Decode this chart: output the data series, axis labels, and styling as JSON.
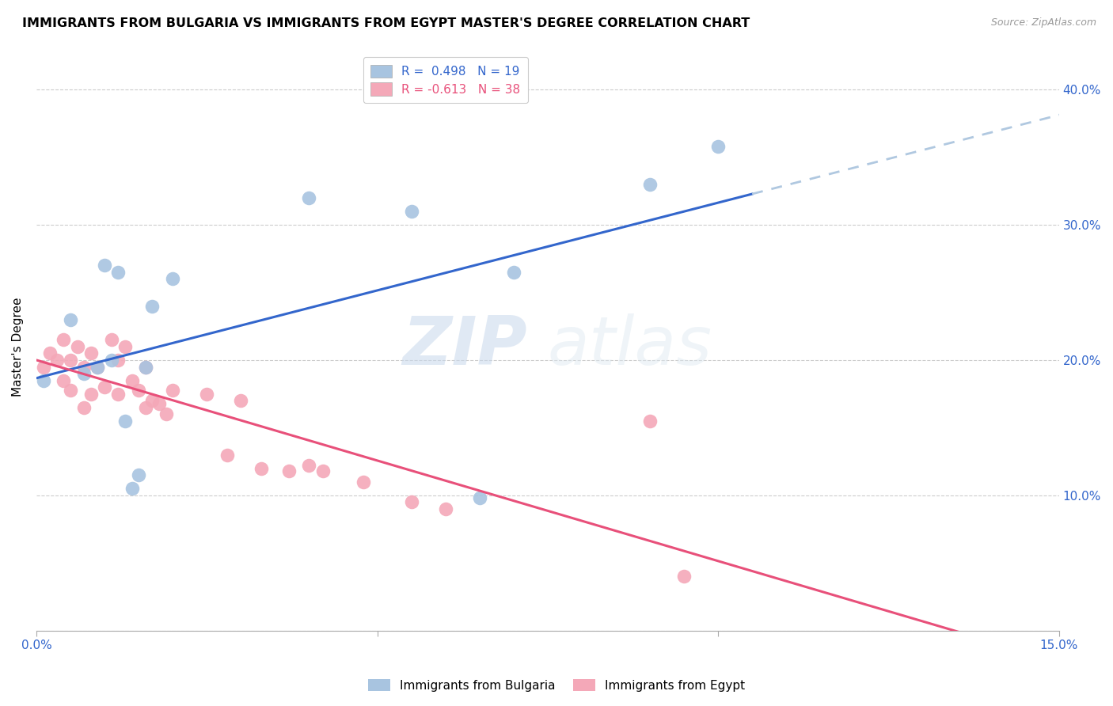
{
  "title": "IMMIGRANTS FROM BULGARIA VS IMMIGRANTS FROM EGYPT MASTER'S DEGREE CORRELATION CHART",
  "source": "Source: ZipAtlas.com",
  "ylabel": "Master's Degree",
  "xlim": [
    0.0,
    0.15
  ],
  "ylim": [
    0.0,
    0.42
  ],
  "bulgaria_color": "#a8c4e0",
  "egypt_color": "#f4a8b8",
  "bulgaria_line_color": "#3366cc",
  "egypt_line_color": "#e8507a",
  "dashed_line_color": "#b0c8e0",
  "R_bulgaria": 0.498,
  "N_bulgaria": 19,
  "R_egypt": -0.613,
  "N_egypt": 38,
  "bulgaria_scatter_x": [
    0.001,
    0.005,
    0.007,
    0.009,
    0.01,
    0.011,
    0.012,
    0.013,
    0.014,
    0.015,
    0.016,
    0.017,
    0.02,
    0.04,
    0.055,
    0.065,
    0.07,
    0.09,
    0.1
  ],
  "bulgaria_scatter_y": [
    0.185,
    0.23,
    0.19,
    0.195,
    0.27,
    0.2,
    0.265,
    0.155,
    0.105,
    0.115,
    0.195,
    0.24,
    0.26,
    0.32,
    0.31,
    0.098,
    0.265,
    0.33,
    0.358
  ],
  "egypt_scatter_x": [
    0.001,
    0.002,
    0.003,
    0.004,
    0.004,
    0.005,
    0.005,
    0.006,
    0.007,
    0.007,
    0.008,
    0.008,
    0.009,
    0.01,
    0.011,
    0.012,
    0.012,
    0.013,
    0.014,
    0.015,
    0.016,
    0.016,
    0.017,
    0.018,
    0.019,
    0.02,
    0.025,
    0.028,
    0.03,
    0.033,
    0.037,
    0.04,
    0.042,
    0.048,
    0.055,
    0.06,
    0.09,
    0.095
  ],
  "egypt_scatter_y": [
    0.195,
    0.205,
    0.2,
    0.215,
    0.185,
    0.2,
    0.178,
    0.21,
    0.195,
    0.165,
    0.205,
    0.175,
    0.195,
    0.18,
    0.215,
    0.2,
    0.175,
    0.21,
    0.185,
    0.178,
    0.195,
    0.165,
    0.17,
    0.168,
    0.16,
    0.178,
    0.175,
    0.13,
    0.17,
    0.12,
    0.118,
    0.122,
    0.118,
    0.11,
    0.095,
    0.09,
    0.155,
    0.04
  ],
  "watermark_zip": "ZIP",
  "watermark_atlas": "atlas",
  "background_color": "#ffffff",
  "grid_color": "#cccccc",
  "title_fontsize": 11.5,
  "axis_label_fontsize": 11,
  "tick_fontsize": 11,
  "legend_fontsize": 11
}
